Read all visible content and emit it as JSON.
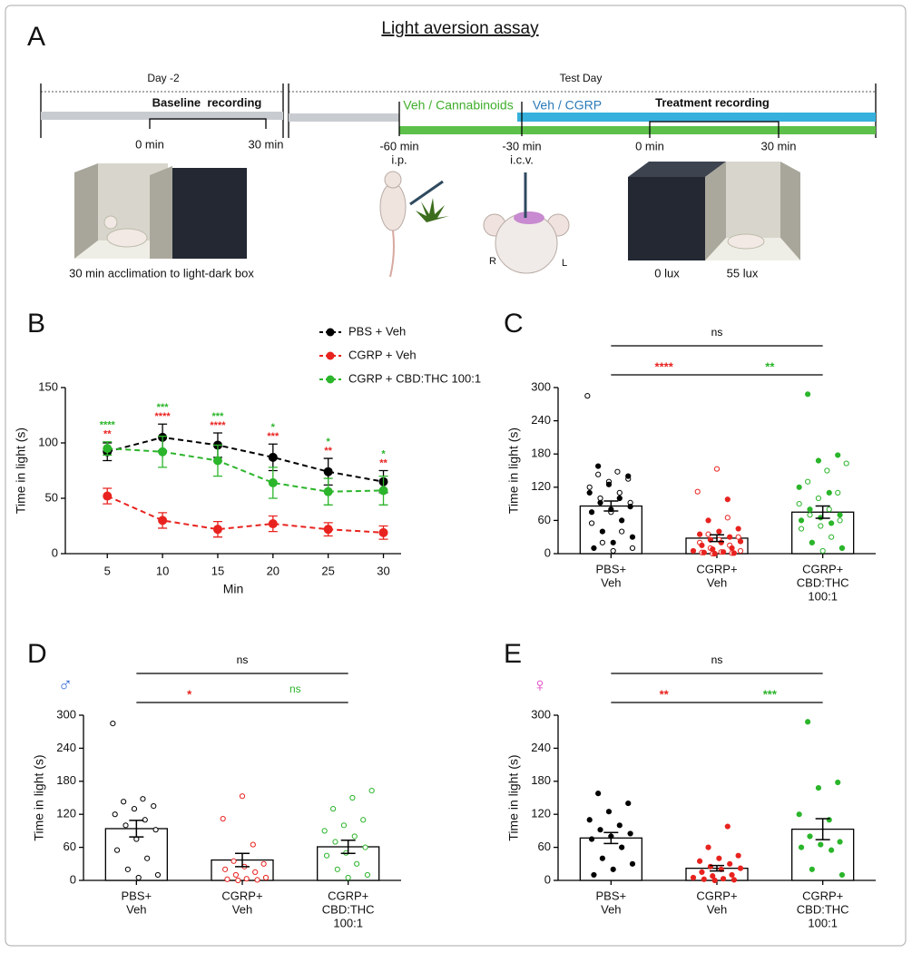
{
  "diagram": {
    "panel": "A",
    "title": "Light aversion assay",
    "day_label": "Day -2",
    "baseline": "Baseline  recording",
    "baseline_start": "0 min",
    "baseline_end": "30 min",
    "test_day": "Test Day",
    "treatment_1": "Veh / Cannabinoids",
    "treatment_2": "Veh / CGRP",
    "treatment_recording": "Treatment recording",
    "time_1": "-60 min",
    "route_1": "i.p.",
    "time_2": "-30 min",
    "route_2": "i.c.v.",
    "time_3": "0 min",
    "time_4": "30 min",
    "acclimation": "30 min acclimation to light-dark box",
    "side_r": "R",
    "side_l": "L",
    "lux_dark": "0 lux",
    "lux_light": "55 lux"
  },
  "chart_data": [
    {
      "panel": "B",
      "type": "line",
      "xlabel": "Min",
      "ylabel": "Time in light (s)",
      "x": [
        5,
        10,
        15,
        20,
        25,
        30
      ],
      "xlim": [
        1.2,
        31.6
      ],
      "xticks": [
        5,
        10,
        15,
        20,
        25,
        30
      ],
      "ylim": [
        0,
        150
      ],
      "yticks": [
        0,
        50,
        100,
        150
      ],
      "series": [
        {
          "name": "PBS + Veh",
          "color": "#000000",
          "values": [
            92,
            105,
            98,
            87,
            74,
            65
          ],
          "errors": [
            8,
            12,
            11,
            12,
            12,
            10
          ]
        },
        {
          "name": "CGRP + Veh",
          "color": "#e8231f",
          "values": [
            52,
            30,
            22,
            27,
            22,
            19
          ],
          "errors": [
            7,
            7,
            7,
            7,
            6,
            6
          ]
        },
        {
          "name": "CGRP + CBD:THC 100:1",
          "color": "#2bb52b",
          "values": [
            95,
            92,
            84,
            64,
            56,
            57
          ],
          "errors": [
            6,
            14,
            14,
            14,
            12,
            13
          ]
        }
      ],
      "significance": [
        {
          "color": "#2bb52b",
          "labels": [
            "****",
            "***",
            "***",
            "*",
            "*",
            "*"
          ]
        },
        {
          "color": "#e8231f",
          "labels": [
            "**",
            "****",
            "****",
            "***",
            "**",
            "**"
          ]
        }
      ]
    },
    {
      "panel": "C",
      "type": "bar",
      "ylabel": "Time in light (s)",
      "categories": [
        [
          "PBS+",
          "Veh"
        ],
        [
          "CGRP+",
          "Veh"
        ],
        [
          "CGRP+",
          "CBD:THC",
          "100:1"
        ]
      ],
      "colors": [
        "#000000",
        "#e8231f",
        "#2bb52b"
      ],
      "values": [
        86,
        28,
        75
      ],
      "errors": [
        9,
        6,
        11
      ],
      "ylim": [
        0,
        300
      ],
      "yticks": [
        0,
        60,
        120,
        180,
        240,
        300
      ],
      "points_open": [
        [
          285,
          148,
          143,
          135,
          130,
          120,
          110,
          100,
          92,
          75,
          55,
          40,
          20,
          10,
          5
        ],
        [
          153,
          112,
          65,
          35,
          30,
          25,
          20,
          15,
          10,
          5,
          3,
          2,
          1,
          0
        ],
        [
          163,
          150,
          130,
          110,
          100,
          90,
          80,
          70,
          60,
          50,
          45,
          30,
          20,
          10,
          5
        ]
      ],
      "points_filled": [
        [
          158,
          140,
          125,
          110,
          100,
          92,
          85,
          80,
          75,
          60,
          40,
          30,
          20,
          10
        ],
        [
          98,
          60,
          45,
          40,
          35,
          30,
          25,
          22,
          20,
          15,
          10,
          8,
          5,
          3,
          2,
          1,
          0
        ],
        [
          288,
          178,
          168,
          120,
          110,
          80,
          70,
          65,
          60,
          55,
          20,
          10
        ]
      ],
      "brackets": [
        {
          "label": "ns",
          "color": "#000000"
        },
        {
          "label": "****",
          "color": "#e8231f"
        },
        {
          "label": "**",
          "color": "#2bb52b"
        }
      ]
    },
    {
      "panel": "D",
      "type": "bar",
      "ylabel": "Time in light (s)",
      "symbol": {
        "text": "♂",
        "color": "#3a6fd8"
      },
      "categories": [
        [
          "PBS+",
          "Veh"
        ],
        [
          "CGRP+",
          "Veh"
        ],
        [
          "CGRP+",
          "CBD:THC",
          "100:1"
        ]
      ],
      "colors": [
        "#000000",
        "#e8231f",
        "#2bb52b"
      ],
      "values": [
        94,
        37,
        61
      ],
      "errors": [
        15,
        12,
        12
      ],
      "ylim": [
        0,
        300
      ],
      "yticks": [
        0,
        60,
        120,
        180,
        240,
        300
      ],
      "points_open": [
        [
          285,
          148,
          143,
          135,
          130,
          120,
          110,
          100,
          92,
          75,
          55,
          40,
          20,
          10,
          5
        ],
        [
          153,
          112,
          65,
          35,
          30,
          25,
          20,
          15,
          10,
          5,
          3,
          2,
          1,
          0
        ],
        [
          163,
          150,
          130,
          110,
          100,
          90,
          80,
          70,
          60,
          50,
          45,
          30,
          20,
          10,
          5
        ]
      ],
      "brackets": [
        {
          "label": "ns",
          "color": "#000000"
        },
        {
          "label": "*",
          "color": "#e8231f"
        },
        {
          "label": "ns",
          "color": "#2bb52b"
        }
      ]
    },
    {
      "panel": "E",
      "type": "bar",
      "ylabel": "Time in light (s)",
      "symbol": {
        "text": "♀",
        "color": "#e040c0"
      },
      "categories": [
        [
          "PBS+",
          "Veh"
        ],
        [
          "CGRP+",
          "Veh"
        ],
        [
          "CGRP+",
          "CBD:THC",
          "100:1"
        ]
      ],
      "colors": [
        "#000000",
        "#e8231f",
        "#2bb52b"
      ],
      "values": [
        77,
        22,
        93
      ],
      "errors": [
        10,
        5,
        19
      ],
      "ylim": [
        0,
        300
      ],
      "yticks": [
        0,
        60,
        120,
        180,
        240,
        300
      ],
      "points_filled": [
        [
          158,
          140,
          125,
          110,
          100,
          92,
          85,
          80,
          75,
          60,
          40,
          30,
          20,
          10
        ],
        [
          98,
          60,
          45,
          40,
          35,
          30,
          25,
          22,
          20,
          15,
          10,
          8,
          5,
          3,
          2,
          1,
          0
        ],
        [
          288,
          178,
          168,
          120,
          110,
          80,
          70,
          65,
          60,
          55,
          20,
          10
        ]
      ],
      "brackets": [
        {
          "label": "ns",
          "color": "#000000"
        },
        {
          "label": "**",
          "color": "#e8231f"
        },
        {
          "label": "***",
          "color": "#2bb52b"
        }
      ]
    }
  ]
}
